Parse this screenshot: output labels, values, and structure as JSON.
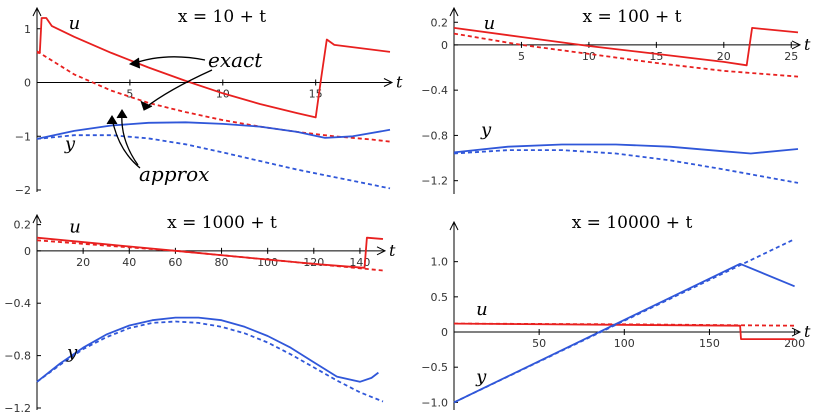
{
  "chart_data": [
    {
      "type": "line",
      "title": "x = 10 + t",
      "xlabel": "t",
      "xlim": [
        0,
        19
      ],
      "ylim": [
        -2,
        1.2
      ],
      "x_ticks": [
        "5",
        "10",
        "15"
      ],
      "x_tick_values": [
        5,
        10,
        15
      ],
      "y_ticks": [
        "1",
        "0",
        "−1",
        "−2"
      ],
      "y_tick_values": [
        1,
        0,
        -1,
        -2
      ],
      "series": [
        {
          "name": "u",
          "variant": "exact",
          "color": "#e8201f",
          "dashed": false,
          "points": [
            [
              0,
              0.55
            ],
            [
              0.15,
              0.55
            ],
            [
              0.25,
              1.2
            ],
            [
              0.5,
              1.2
            ],
            [
              0.8,
              1.05
            ],
            [
              2,
              0.85
            ],
            [
              4,
              0.55
            ],
            [
              6,
              0.28
            ],
            [
              8,
              0.03
            ],
            [
              10,
              -0.2
            ],
            [
              12,
              -0.4
            ],
            [
              14,
              -0.57
            ],
            [
              15,
              -0.65
            ],
            [
              15.3,
              0.1
            ],
            [
              15.6,
              0.8
            ],
            [
              16,
              0.7
            ],
            [
              19,
              0.57
            ]
          ]
        },
        {
          "name": "u",
          "variant": "approx",
          "color": "#e8201f",
          "dashed": true,
          "points": [
            [
              0,
              0.58
            ],
            [
              2,
              0.15
            ],
            [
              4,
              -0.15
            ],
            [
              6,
              -0.38
            ],
            [
              8,
              -0.55
            ],
            [
              10,
              -0.7
            ],
            [
              12,
              -0.82
            ],
            [
              14,
              -0.92
            ],
            [
              16,
              -1.0
            ],
            [
              18,
              -1.06
            ],
            [
              19,
              -1.1
            ]
          ]
        },
        {
          "name": "y",
          "variant": "exact",
          "color": "#3057d9",
          "dashed": false,
          "points": [
            [
              0,
              -1.05
            ],
            [
              2,
              -0.9
            ],
            [
              4,
              -0.8
            ],
            [
              6,
              -0.75
            ],
            [
              8,
              -0.74
            ],
            [
              10,
              -0.77
            ],
            [
              12,
              -0.82
            ],
            [
              14,
              -0.92
            ],
            [
              15.5,
              -1.03
            ],
            [
              17,
              -1.0
            ],
            [
              19,
              -0.88
            ]
          ]
        },
        {
          "name": "y",
          "variant": "approx",
          "color": "#3057d9",
          "dashed": true,
          "points": [
            [
              0,
              -1.05
            ],
            [
              2,
              -0.98
            ],
            [
              4,
              -0.98
            ],
            [
              6,
              -1.04
            ],
            [
              8,
              -1.15
            ],
            [
              10,
              -1.3
            ],
            [
              12,
              -1.46
            ],
            [
              14,
              -1.62
            ],
            [
              16,
              -1.76
            ],
            [
              18,
              -1.9
            ],
            [
              19,
              -1.97
            ]
          ]
        }
      ],
      "curve_labels": [
        {
          "text": "u",
          "at": [
            1.7,
            1.0
          ]
        },
        {
          "text": "y",
          "at": [
            1.5,
            -1.25
          ]
        }
      ],
      "annotations": [
        "exact",
        "approx"
      ]
    },
    {
      "type": "line",
      "title": "x = 100 + t",
      "xlabel": "t",
      "xlim": [
        0,
        25.5
      ],
      "ylim": [
        -1.3,
        0.22
      ],
      "x_ticks": [
        "5",
        "10",
        "15",
        "20",
        "25"
      ],
      "x_tick_values": [
        5,
        10,
        15,
        20,
        25
      ],
      "y_ticks": [
        "0.2",
        "0",
        "−0.4",
        "−0.8",
        "−1.2"
      ],
      "y_tick_values": [
        0.2,
        0,
        -0.4,
        -0.8,
        -1.2
      ],
      "series": [
        {
          "name": "u",
          "variant": "exact",
          "color": "#e8201f",
          "dashed": false,
          "points": [
            [
              0,
              0.15
            ],
            [
              5,
              0.07
            ],
            [
              10,
              -0.01
            ],
            [
              15,
              -0.08
            ],
            [
              20,
              -0.15
            ],
            [
              21.7,
              -0.18
            ],
            [
              22.1,
              0.15
            ],
            [
              25.5,
              0.11
            ]
          ]
        },
        {
          "name": "u",
          "variant": "approx",
          "color": "#e8201f",
          "dashed": true,
          "points": [
            [
              0,
              0.1
            ],
            [
              5,
              0.0
            ],
            [
              10,
              -0.08
            ],
            [
              15,
              -0.16
            ],
            [
              20,
              -0.23
            ],
            [
              25.5,
              -0.28
            ]
          ]
        },
        {
          "name": "y",
          "variant": "exact",
          "color": "#3057d9",
          "dashed": false,
          "points": [
            [
              0,
              -0.95
            ],
            [
              4,
              -0.9
            ],
            [
              8,
              -0.88
            ],
            [
              12,
              -0.88
            ],
            [
              16,
              -0.9
            ],
            [
              20,
              -0.94
            ],
            [
              22,
              -0.96
            ],
            [
              25.5,
              -0.92
            ]
          ]
        },
        {
          "name": "y",
          "variant": "approx",
          "color": "#3057d9",
          "dashed": true,
          "points": [
            [
              0,
              -0.96
            ],
            [
              4,
              -0.93
            ],
            [
              8,
              -0.93
            ],
            [
              12,
              -0.96
            ],
            [
              16,
              -1.02
            ],
            [
              20,
              -1.1
            ],
            [
              25.5,
              -1.22
            ]
          ]
        }
      ],
      "curve_labels": [
        {
          "text": "u",
          "at": [
            2.2,
            0.14
          ]
        },
        {
          "text": "y",
          "at": [
            2.0,
            -0.8
          ]
        }
      ]
    },
    {
      "type": "line",
      "title": "x = 1000 + t",
      "xlabel": "t",
      "xlim": [
        0,
        150
      ],
      "ylim": [
        -1.2,
        0.22
      ],
      "x_ticks": [
        "20",
        "40",
        "60",
        "80",
        "100",
        "120",
        "140"
      ],
      "x_tick_values": [
        20,
        40,
        60,
        80,
        100,
        120,
        140
      ],
      "y_ticks": [
        "0.2",
        "0",
        "−0.4",
        "−0.8",
        "−1.2"
      ],
      "y_tick_values": [
        0.2,
        0,
        -0.4,
        -0.8,
        -1.2
      ],
      "series": [
        {
          "name": "u",
          "variant": "exact",
          "color": "#e8201f",
          "dashed": false,
          "points": [
            [
              0,
              0.1
            ],
            [
              30,
              0.05
            ],
            [
              60,
              0.0
            ],
            [
              90,
              -0.05
            ],
            [
              120,
              -0.1
            ],
            [
              142,
              -0.13
            ],
            [
              143,
              0.1
            ],
            [
              150,
              0.09
            ]
          ]
        },
        {
          "name": "u",
          "variant": "approx",
          "color": "#e8201f",
          "dashed": true,
          "points": [
            [
              0,
              0.08
            ],
            [
              30,
              0.04
            ],
            [
              60,
              0.0
            ],
            [
              90,
              -0.05
            ],
            [
              120,
              -0.1
            ],
            [
              150,
              -0.15
            ]
          ]
        },
        {
          "name": "y",
          "variant": "exact",
          "color": "#3057d9",
          "dashed": false,
          "points": [
            [
              0,
              -1.0
            ],
            [
              10,
              -0.86
            ],
            [
              20,
              -0.74
            ],
            [
              30,
              -0.64
            ],
            [
              40,
              -0.57
            ],
            [
              50,
              -0.53
            ],
            [
              60,
              -0.51
            ],
            [
              70,
              -0.51
            ],
            [
              80,
              -0.53
            ],
            [
              90,
              -0.58
            ],
            [
              100,
              -0.65
            ],
            [
              110,
              -0.74
            ],
            [
              120,
              -0.85
            ],
            [
              130,
              -0.96
            ],
            [
              140,
              -1.0
            ],
            [
              145,
              -0.97
            ],
            [
              148,
              -0.93
            ]
          ]
        },
        {
          "name": "y",
          "variant": "approx",
          "color": "#3057d9",
          "dashed": true,
          "points": [
            [
              0,
              -1.0
            ],
            [
              10,
              -0.87
            ],
            [
              20,
              -0.75
            ],
            [
              30,
              -0.66
            ],
            [
              40,
              -0.59
            ],
            [
              50,
              -0.55
            ],
            [
              60,
              -0.54
            ],
            [
              70,
              -0.55
            ],
            [
              80,
              -0.58
            ],
            [
              90,
              -0.63
            ],
            [
              100,
              -0.7
            ],
            [
              110,
              -0.79
            ],
            [
              120,
              -0.89
            ],
            [
              130,
              -0.99
            ],
            [
              140,
              -1.08
            ],
            [
              150,
              -1.15
            ]
          ]
        }
      ],
      "curve_labels": [
        {
          "text": "u",
          "at": [
            14,
            0.14
          ]
        },
        {
          "text": "y",
          "at": [
            13,
            -0.82
          ]
        }
      ]
    },
    {
      "type": "line",
      "title": "x = 10000 + t",
      "xlabel": "t",
      "xlim": [
        0,
        202
      ],
      "ylim": [
        -1.08,
        1.45
      ],
      "x_ticks": [
        "50",
        "100",
        "150",
        "200"
      ],
      "x_tick_values": [
        50,
        100,
        150,
        200
      ],
      "y_ticks": [
        "1.0",
        "0.5",
        "0",
        "−0.5",
        "−1.0"
      ],
      "y_tick_values": [
        1.0,
        0.5,
        0,
        -0.5,
        -1.0
      ],
      "series": [
        {
          "name": "u",
          "variant": "exact",
          "color": "#e8201f",
          "dashed": false,
          "points": [
            [
              0,
              0.12
            ],
            [
              168,
              0.09
            ],
            [
              168.5,
              -0.1
            ],
            [
              200,
              -0.1
            ]
          ]
        },
        {
          "name": "u",
          "variant": "approx",
          "color": "#e8201f",
          "dashed": true,
          "points": [
            [
              0,
              0.12
            ],
            [
              100,
              0.11
            ],
            [
              200,
              0.09
            ]
          ]
        },
        {
          "name": "y",
          "variant": "exact",
          "color": "#3057d9",
          "dashed": false,
          "points": [
            [
              0,
              -1.0
            ],
            [
              168,
              0.97
            ],
            [
              200,
              0.65
            ]
          ]
        },
        {
          "name": "y",
          "variant": "approx",
          "color": "#3057d9",
          "dashed": true,
          "points": [
            [
              0,
              -1.0
            ],
            [
              200,
              1.32
            ]
          ]
        }
      ],
      "curve_labels": [
        {
          "text": "u",
          "at": [
            13,
            0.24
          ]
        },
        {
          "text": "y",
          "at": [
            13,
            -0.72
          ]
        }
      ]
    }
  ]
}
